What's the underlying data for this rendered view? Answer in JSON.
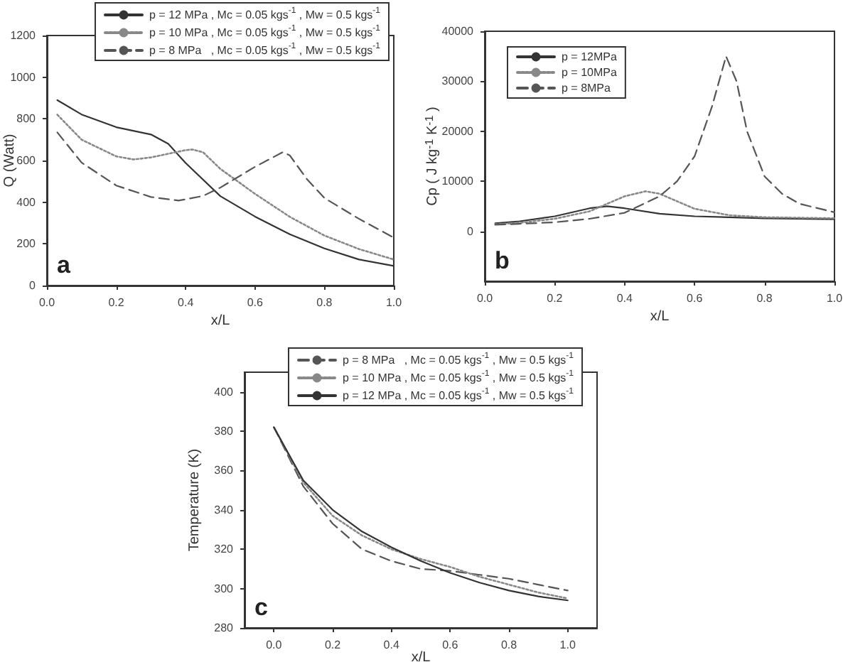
{
  "chart_data": [
    {
      "type": "line",
      "xlabel": "x/L",
      "ylabel": "Q (Watt)",
      "xlim": [
        0,
        1
      ],
      "xticks": [
        {
          "value": 0,
          "label": "0.0"
        },
        {
          "value": 0.2,
          "label": "0.2"
        },
        {
          "value": 0.4,
          "label": "0.4"
        },
        {
          "value": 0.6,
          "label": "0.6"
        },
        {
          "value": 0.8,
          "label": "0.8"
        },
        {
          "value": 1,
          "label": "1.0"
        }
      ],
      "ylim": [
        0,
        1200
      ],
      "yticks": [
        0,
        200,
        400,
        600,
        800,
        1000,
        1200
      ],
      "grid": false,
      "legend": "top",
      "marker": "none",
      "annotations": [
        "a"
      ],
      "series": [
        {
          "name": "p = 12 MPa , Mc = 0.05 kgs$^{-1}$ , Mw = 0.5 kgs$^{-1}$",
          "color": "#333333",
          "line_style": "solid",
          "x": [
            0.03,
            0.1,
            0.2,
            0.3,
            0.35,
            0.4,
            0.5,
            0.6,
            0.7,
            0.8,
            0.9,
            1.0
          ],
          "values": [
            890,
            821,
            760,
            725,
            680,
            588,
            429,
            331,
            246,
            178,
            125,
            94
          ]
        },
        {
          "name": "p = 10 MPa , Mc = 0.05 kgs$^{-1}$ , Mw = 0.5 kgs$^{-1}$",
          "color": "#888888",
          "line_style": "dotted",
          "x": [
            0.03,
            0.1,
            0.2,
            0.25,
            0.3,
            0.4,
            0.42,
            0.45,
            0.5,
            0.6,
            0.7,
            0.8,
            0.9,
            1.0
          ],
          "values": [
            820,
            700,
            620,
            605,
            615,
            650,
            653,
            640,
            560,
            440,
            330,
            240,
            175,
            125
          ]
        },
        {
          "name": "p = 8 MPa   , Mc = 0.05 kgs$^{-1}$ , Mw = 0.5 kgs$^{-1}$",
          "color": "#555555",
          "line_style": "dashed",
          "x": [
            0.03,
            0.1,
            0.2,
            0.3,
            0.38,
            0.45,
            0.5,
            0.6,
            0.68,
            0.7,
            0.75,
            0.8,
            0.9,
            1.0
          ],
          "values": [
            735,
            590,
            480,
            425,
            408,
            430,
            470,
            570,
            640,
            625,
            510,
            420,
            320,
            230
          ]
        }
      ]
    },
    {
      "type": "line",
      "xlabel": "x/L",
      "ylabel": "Cp ( J kg$^{-1}$ K$^{-1}$ )",
      "xlim": [
        0,
        1
      ],
      "xticks": [
        {
          "value": 0,
          "label": "0.0"
        },
        {
          "value": 0.2,
          "label": "0.2"
        },
        {
          "value": 0.4,
          "label": "0.4"
        },
        {
          "value": 0.6,
          "label": "0.6"
        },
        {
          "value": 0.8,
          "label": "0.8"
        },
        {
          "value": 1,
          "label": "1.0"
        }
      ],
      "ylim": [
        -10000,
        40000
      ],
      "yticks": [
        0,
        10000,
        20000,
        30000,
        40000
      ],
      "grid": false,
      "legend": "top left",
      "marker": "none",
      "annotations": [
        "b"
      ],
      "series": [
        {
          "name": "p = 12MPa",
          "color": "#333333",
          "line_style": "solid",
          "x": [
            0.03,
            0.1,
            0.2,
            0.3,
            0.35,
            0.4,
            0.5,
            0.6,
            0.8,
            1.0
          ],
          "values": [
            1600,
            2000,
            3000,
            4600,
            5000,
            4600,
            3500,
            3000,
            2600,
            2400
          ]
        },
        {
          "name": "p = 10MPa",
          "color": "#888888",
          "line_style": "dotted",
          "x": [
            0.03,
            0.1,
            0.2,
            0.3,
            0.4,
            0.46,
            0.5,
            0.6,
            0.7,
            0.8,
            1.0
          ],
          "values": [
            1400,
            1700,
            2500,
            4000,
            7000,
            8000,
            7500,
            4500,
            3200,
            2800,
            2600
          ]
        },
        {
          "name": "p = 8MPa",
          "color": "#555555",
          "line_style": "dashed",
          "x": [
            0.03,
            0.1,
            0.2,
            0.3,
            0.4,
            0.5,
            0.55,
            0.6,
            0.65,
            0.69,
            0.72,
            0.75,
            0.8,
            0.85,
            0.9,
            1.0
          ],
          "values": [
            1300,
            1500,
            1800,
            2500,
            3700,
            7000,
            10000,
            15000,
            25000,
            35000,
            30000,
            20000,
            11000,
            7500,
            5500,
            3800
          ]
        }
      ]
    },
    {
      "type": "line",
      "xlabel": "x/L",
      "ylabel": "Temperature (K)",
      "xlim": [
        -0.1,
        1.1
      ],
      "xticks": [
        {
          "value": 0,
          "label": "0.0"
        },
        {
          "value": 0.2,
          "label": "0.2"
        },
        {
          "value": 0.4,
          "label": "0.4"
        },
        {
          "value": 0.6,
          "label": "0.6"
        },
        {
          "value": 0.8,
          "label": "0.8"
        },
        {
          "value": 1,
          "label": "1.0"
        }
      ],
      "ylim": [
        280,
        410
      ],
      "yticks": [
        280,
        300,
        320,
        340,
        360,
        380,
        400
      ],
      "grid": false,
      "legend": "top",
      "marker": "none",
      "annotations": [
        "c"
      ],
      "series": [
        {
          "name": "p = 8 MPa   , Mc = 0.05 kgs$^{-1}$ , Mw = 0.5 kgs$^{-1}$",
          "color": "#555555",
          "line_style": "dashed",
          "x": [
            0,
            0.1,
            0.2,
            0.3,
            0.4,
            0.5,
            0.6,
            0.7,
            0.8,
            0.9,
            1.0
          ],
          "values": [
            382,
            352,
            333,
            320,
            314,
            310,
            309,
            307,
            305,
            302,
            299
          ]
        },
        {
          "name": "p = 10 MPa , Mc = 0.05 kgs$^{-1}$ , Mw = 0.5 kgs$^{-1}$",
          "color": "#888888",
          "line_style": "dotted",
          "x": [
            0,
            0.1,
            0.2,
            0.3,
            0.4,
            0.5,
            0.6,
            0.7,
            0.8,
            0.9,
            1.0
          ],
          "values": [
            382,
            354,
            337,
            327,
            320,
            315,
            311,
            306,
            302,
            298,
            295
          ]
        },
        {
          "name": "p = 12 MPa , Mc = 0.05 kgs$^{-1}$ , Mw = 0.5 kgs$^{-1}$",
          "color": "#333333",
          "line_style": "solid",
          "x": [
            0,
            0.1,
            0.2,
            0.3,
            0.4,
            0.5,
            0.6,
            0.7,
            0.8,
            0.9,
            1.0
          ],
          "values": [
            382,
            355,
            340,
            329,
            321,
            314,
            308,
            303,
            299,
            296,
            294
          ]
        }
      ]
    }
  ]
}
